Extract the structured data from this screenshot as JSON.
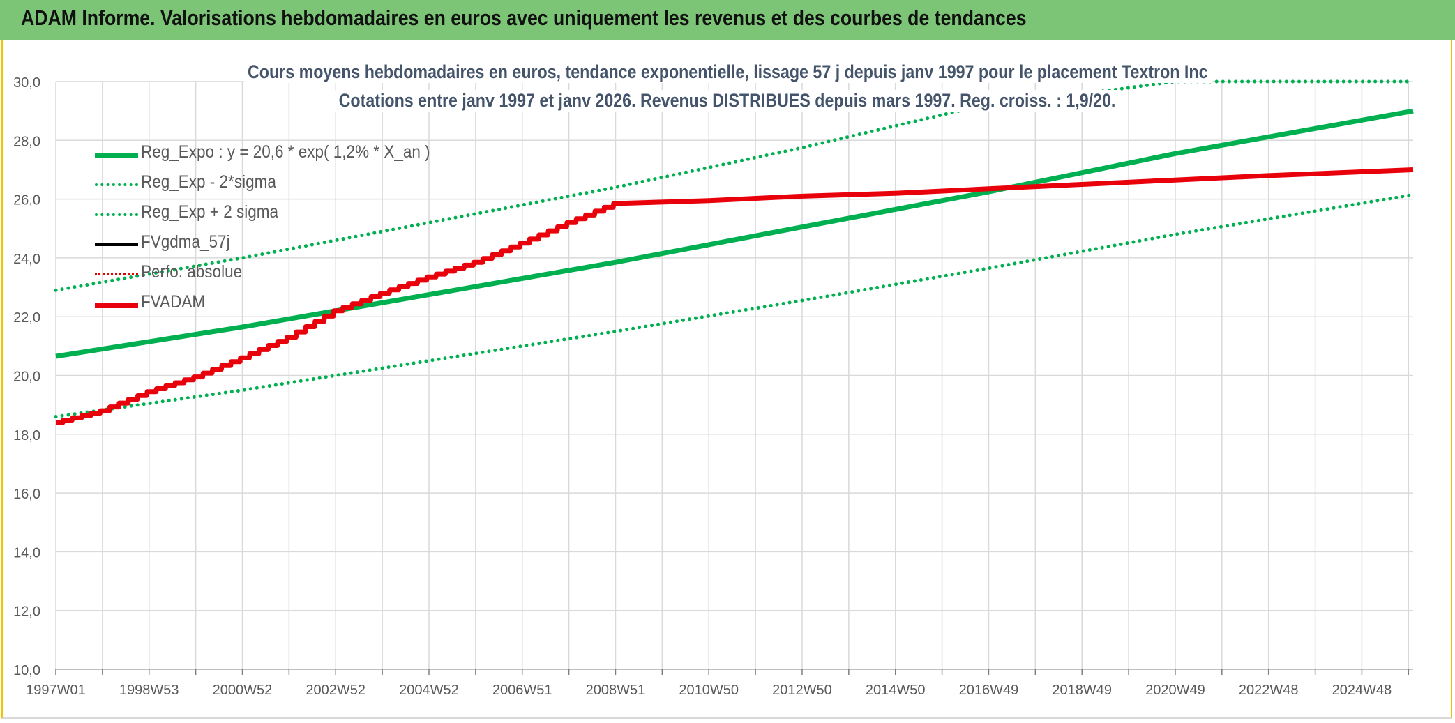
{
  "banner": {
    "title": "ADAM Informe. Valorisations hebdomadaires en euros avec uniquement les revenus et des courbes de tendances"
  },
  "chart_data": {
    "type": "line",
    "title": "Cours moyens hebdomadaires en euros, tendance exponentielle, lissage 57 j depuis janv 1997 pour le placement Textron Inc",
    "subtitle": "Cotations entre janv 1997 et janv 2026. Revenus DISTRIBUES depuis mars 1997. Reg. croiss. : 1,9/20.",
    "xlabel": "",
    "ylabel": "",
    "ylim": [
      10,
      30
    ],
    "yticks": [
      "10,0",
      "12,0",
      "14,0",
      "16,0",
      "18,0",
      "20,0",
      "22,0",
      "24,0",
      "26,0",
      "28,0",
      "30,0"
    ],
    "xlim": [
      1997.0,
      2026.1
    ],
    "xticks": [
      {
        "label": "1997W01",
        "x": 1997.0
      },
      {
        "label": "1998W53",
        "x": 1999.0
      },
      {
        "label": "2000W52",
        "x": 2001.0
      },
      {
        "label": "2002W52",
        "x": 2003.0
      },
      {
        "label": "2004W52",
        "x": 2005.0
      },
      {
        "label": "2006W51",
        "x": 2007.0
      },
      {
        "label": "2008W51",
        "x": 2009.0
      },
      {
        "label": "2010W50",
        "x": 2011.0
      },
      {
        "label": "2012W50",
        "x": 2013.0
      },
      {
        "label": "2014W50",
        "x": 2015.0
      },
      {
        "label": "2016W49",
        "x": 2017.0
      },
      {
        "label": "2018W49",
        "x": 2019.0
      },
      {
        "label": "2020W49",
        "x": 2021.0
      },
      {
        "label": "2022W48",
        "x": 2023.0
      },
      {
        "label": "2024W48",
        "x": 2025.0
      }
    ],
    "grid": true,
    "legend_position": "top-left",
    "series": [
      {
        "name": "Reg_Expo : y = 20,6 * exp( 1,2% *  X_an )",
        "color": "#00b050",
        "style": "solid",
        "width": 7,
        "points": [
          [
            1997.0,
            20.65
          ],
          [
            2001.0,
            21.65
          ],
          [
            2005.0,
            22.75
          ],
          [
            2009.0,
            23.85
          ],
          [
            2013.0,
            25.05
          ],
          [
            2017.0,
            26.25
          ],
          [
            2021.0,
            27.55
          ],
          [
            2026.1,
            29.0
          ]
        ]
      },
      {
        "name": "Reg_Exp - 2*sigma",
        "color": "#00b050",
        "style": "dotted",
        "width": 5,
        "points": [
          [
            1997.0,
            18.6
          ],
          [
            2001.0,
            19.5
          ],
          [
            2005.0,
            20.5
          ],
          [
            2009.0,
            21.5
          ],
          [
            2013.0,
            22.55
          ],
          [
            2017.0,
            23.65
          ],
          [
            2021.0,
            24.8
          ],
          [
            2026.1,
            26.15
          ]
        ]
      },
      {
        "name": "Reg_Exp + 2 sigma",
        "color": "#00b050",
        "style": "dotted",
        "width": 5,
        "points": [
          [
            1997.0,
            22.9
          ],
          [
            2001.0,
            24.0
          ],
          [
            2005.0,
            25.2
          ],
          [
            2009.0,
            26.4
          ],
          [
            2013.0,
            27.75
          ],
          [
            2016.5,
            29.05
          ],
          [
            2021.0,
            30.0
          ],
          [
            2026.1,
            30.0
          ]
        ]
      },
      {
        "name": "FVgdma_57j",
        "color": "#000000",
        "style": "solid",
        "width": 4,
        "points": []
      },
      {
        "name": "Perfo. absolue",
        "color": "#e00000",
        "style": "dotted",
        "width": 4,
        "points": []
      },
      {
        "name": "FVADAM",
        "color": "#e8000b",
        "style": "solid",
        "width": 7,
        "points": [
          [
            1997.0,
            18.4
          ],
          [
            1998.0,
            18.8
          ],
          [
            1999.0,
            19.45
          ],
          [
            2000.0,
            19.95
          ],
          [
            2001.0,
            20.6
          ],
          [
            2002.0,
            21.3
          ],
          [
            2003.0,
            22.2
          ],
          [
            2004.0,
            22.8
          ],
          [
            2005.0,
            23.35
          ],
          [
            2006.0,
            23.85
          ],
          [
            2007.0,
            24.5
          ],
          [
            2008.0,
            25.2
          ],
          [
            2009.0,
            25.85
          ],
          [
            2011.0,
            25.95
          ],
          [
            2013.0,
            26.1
          ],
          [
            2015.0,
            26.2
          ],
          [
            2017.0,
            26.35
          ],
          [
            2019.0,
            26.5
          ],
          [
            2021.0,
            26.65
          ],
          [
            2023.0,
            26.8
          ],
          [
            2026.1,
            27.0
          ]
        ]
      }
    ]
  }
}
